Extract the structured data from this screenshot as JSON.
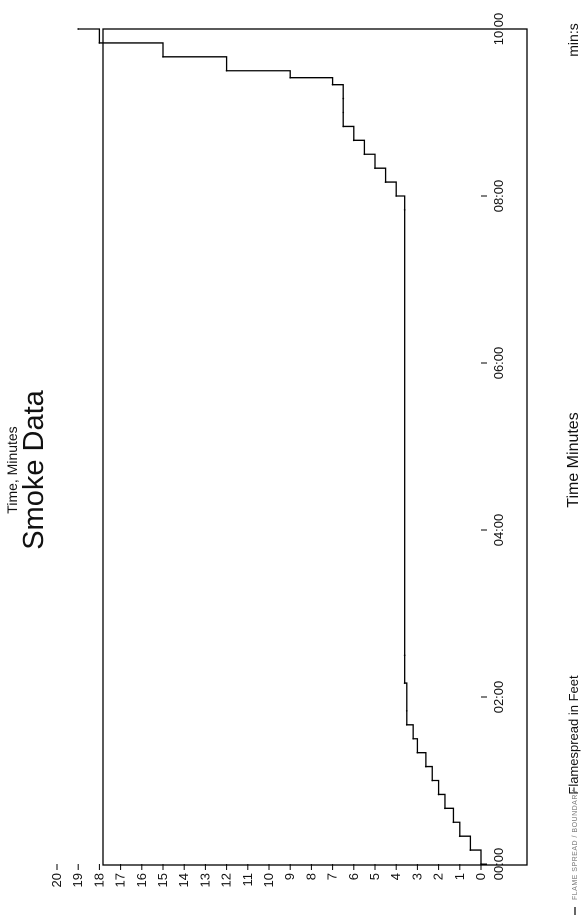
{
  "chart_data": {
    "type": "line",
    "title": "Smoke Data",
    "subtitle": "Time, Minutes",
    "xlabel": "Time Minutes",
    "ylabel": "Flamespread in Feet",
    "x_unit": "min:s",
    "x_ticks": [
      "00:00",
      "02:00",
      "04:00",
      "06:00",
      "08:00",
      "10:00"
    ],
    "xlim": [
      0,
      600
    ],
    "ylim": [
      0,
      20
    ],
    "y_ticks": [
      "0",
      "1",
      "2",
      "3",
      "4",
      "5",
      "6",
      "7",
      "8",
      "9",
      "10",
      "11",
      "12",
      "13",
      "14",
      "15",
      "16",
      "17",
      "18",
      "19",
      "20"
    ],
    "legend": "FLAME SPREAD / BOUNDARY",
    "series": [
      {
        "color": "#000000",
        "x": [
          0,
          10,
          20,
          30,
          40,
          50,
          60,
          70,
          80,
          90,
          100,
          110,
          130,
          150,
          470,
          480,
          490,
          500,
          510,
          520,
          530,
          540,
          550,
          560,
          565,
          570,
          580,
          590,
          600
        ],
        "y": [
          0,
          0.5,
          1,
          1.3,
          1.7,
          2,
          2.3,
          2.6,
          3,
          3.2,
          3.5,
          3.5,
          3.6,
          3.6,
          3.6,
          4,
          4.5,
          5,
          5.5,
          6,
          6.5,
          6.5,
          6.5,
          7,
          9,
          12,
          15,
          18,
          19
        ]
      }
    ]
  }
}
